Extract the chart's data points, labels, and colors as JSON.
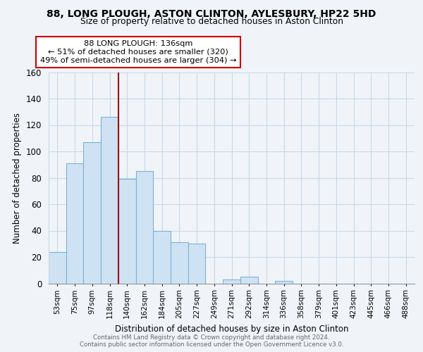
{
  "title1": "88, LONG PLOUGH, ASTON CLINTON, AYLESBURY, HP22 5HD",
  "title2": "Size of property relative to detached houses in Aston Clinton",
  "xlabel": "Distribution of detached houses by size in Aston Clinton",
  "ylabel": "Number of detached properties",
  "bin_labels": [
    "53sqm",
    "75sqm",
    "97sqm",
    "118sqm",
    "140sqm",
    "162sqm",
    "184sqm",
    "205sqm",
    "227sqm",
    "249sqm",
    "271sqm",
    "292sqm",
    "314sqm",
    "336sqm",
    "358sqm",
    "379sqm",
    "401sqm",
    "423sqm",
    "445sqm",
    "466sqm",
    "488sqm"
  ],
  "bar_values": [
    24,
    91,
    107,
    126,
    79,
    85,
    40,
    31,
    30,
    0,
    3,
    5,
    0,
    2,
    0,
    0,
    0,
    0,
    0,
    0,
    0
  ],
  "bar_color": "#cfe2f3",
  "bar_edge_color": "#7ab3d4",
  "highlight_line_color": "#aa0000",
  "annotation_text_line1": "88 LONG PLOUGH: 136sqm",
  "annotation_text_line2": "← 51% of detached houses are smaller (320)",
  "annotation_text_line3": "49% of semi-detached houses are larger (304) →",
  "annotation_box_edge_color": "#cc0000",
  "ylim": [
    0,
    160
  ],
  "yticks": [
    0,
    20,
    40,
    60,
    80,
    100,
    120,
    140,
    160
  ],
  "footer_text": "Contains HM Land Registry data © Crown copyright and database right 2024.\nContains public sector information licensed under the Open Government Licence v3.0.",
  "bg_color": "#f0f4f8",
  "grid_color": "#c8d8e8",
  "highlight_bin_index": 4
}
